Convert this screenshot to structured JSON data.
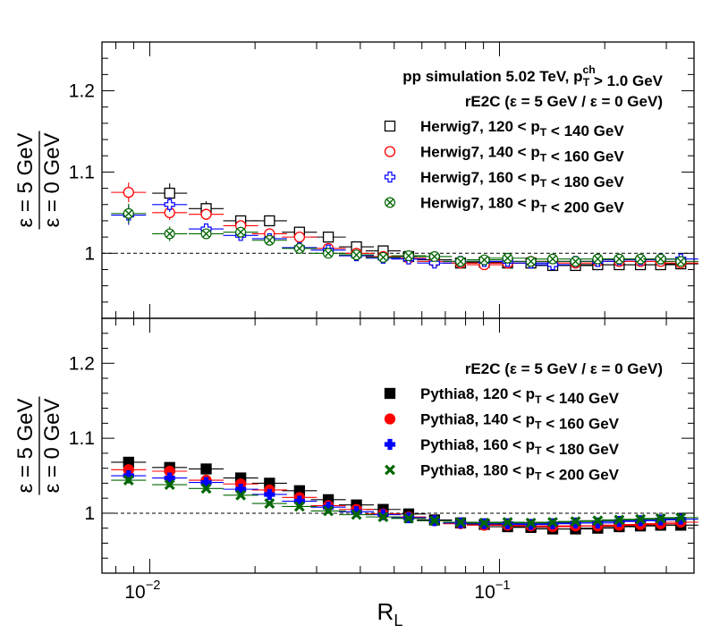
{
  "chart_data": [
    {
      "type": "scatter",
      "panel": "top",
      "ylabel": {
        "numerator": "ε = 5 GeV",
        "denominator": "ε = 0 GeV"
      },
      "ylim": [
        0.92,
        1.26
      ],
      "xlim": [
        0.0073,
        0.36
      ],
      "xscale": "log",
      "reference_line": 1.0,
      "yticks": [
        "1",
        "1.1",
        "1.2"
      ],
      "header": [
        "pp simulation 5.02 TeV, p_T^ch > 1.0 GeV",
        "rE2C (ε = 5 GeV / ε = 0 GeV)"
      ],
      "legend_position": "top-right",
      "series": [
        {
          "name": "Herwig7, 120 < p_T < 140 GeV",
          "color": "#000000",
          "marker": "open-square",
          "x": [
            0.0114,
            0.0145,
            0.0182,
            0.022,
            0.0268,
            0.0324,
            0.039,
            0.0465,
            0.055,
            0.0652,
            0.0774,
            0.0905,
            0.1055,
            0.123,
            0.142,
            0.165,
            0.191,
            0.22,
            0.253,
            0.289,
            0.33
          ],
          "y": [
            1.074,
            1.055,
            1.04,
            1.04,
            1.026,
            1.02,
            1.008,
            1.003,
            0.996,
            0.992,
            0.988,
            0.989,
            0.988,
            0.988,
            0.985,
            0.985,
            0.986,
            0.986,
            0.986,
            0.986,
            0.987
          ]
        },
        {
          "name": "Herwig7, 140 < p_T < 160 GeV",
          "color": "#ff0000",
          "marker": "open-circle",
          "x": [
            0.0087,
            0.0114,
            0.0145,
            0.0182,
            0.022,
            0.0268,
            0.0324,
            0.039,
            0.0465,
            0.055,
            0.0652,
            0.0774,
            0.0905,
            0.1055,
            0.123,
            0.142,
            0.165,
            0.191,
            0.22,
            0.253,
            0.289,
            0.33
          ],
          "y": [
            1.075,
            1.05,
            1.048,
            1.034,
            1.024,
            1.02,
            1.006,
            1.0,
            0.996,
            0.994,
            0.99,
            0.988,
            0.986,
            0.988,
            0.99,
            0.99,
            0.988,
            0.99,
            0.99,
            0.99,
            0.99,
            0.988
          ]
        },
        {
          "name": "Herwig7, 160 < p_T < 180 GeV",
          "color": "#0000ff",
          "marker": "open-cross",
          "x": [
            0.0087,
            0.0114,
            0.0145,
            0.0182,
            0.022,
            0.0268,
            0.0324,
            0.039,
            0.0465,
            0.055,
            0.0652,
            0.0774,
            0.0905,
            0.1055,
            0.123,
            0.142,
            0.165,
            0.191,
            0.22,
            0.253,
            0.289,
            0.33
          ],
          "y": [
            1.047,
            1.06,
            1.03,
            1.022,
            1.018,
            1.007,
            1.004,
            0.997,
            0.994,
            0.993,
            0.988,
            0.99,
            0.99,
            0.99,
            0.988,
            0.986,
            0.99,
            0.99,
            0.992,
            0.992,
            0.993,
            0.993
          ]
        },
        {
          "name": "Herwig7, 180 < p_T < 200 GeV",
          "color": "#006600",
          "marker": "open-x",
          "x": [
            0.0087,
            0.0114,
            0.0145,
            0.0182,
            0.022,
            0.0268,
            0.0324,
            0.039,
            0.0465,
            0.055,
            0.0652,
            0.0774,
            0.0905,
            0.1055,
            0.123,
            0.142,
            0.165,
            0.191,
            0.22,
            0.253,
            0.289,
            0.33
          ],
          "y": [
            1.049,
            1.024,
            1.024,
            1.026,
            1.016,
            1.006,
            1.0,
            0.998,
            0.995,
            0.997,
            0.996,
            0.99,
            0.992,
            0.994,
            0.99,
            0.993,
            0.99,
            0.993,
            0.993,
            0.993,
            0.993,
            0.99
          ]
        }
      ]
    },
    {
      "type": "scatter",
      "panel": "bottom",
      "ylabel": {
        "numerator": "ε = 5 GeV",
        "denominator": "ε = 0 GeV"
      },
      "ylim": [
        0.92,
        1.26
      ],
      "xlim": [
        0.0073,
        0.36
      ],
      "xscale": "log",
      "reference_line": 1.0,
      "yticks": [
        "1",
        "1.1",
        "1.2"
      ],
      "xlabel": "R_L",
      "xticks": [
        {
          "base": "10",
          "exp": "−2",
          "value": 0.01
        },
        {
          "base": "10",
          "exp": "−1",
          "value": 0.1
        }
      ],
      "header": [
        "rE2C (ε = 5 GeV / ε = 0 GeV)"
      ],
      "legend_position": "top-right",
      "series": [
        {
          "name": "Pythia8, 120 < p_T < 140 GeV",
          "color": "#000000",
          "marker": "filled-square",
          "x": [
            0.0087,
            0.0114,
            0.0145,
            0.0182,
            0.022,
            0.0268,
            0.0324,
            0.039,
            0.0465,
            0.055,
            0.0652,
            0.0774,
            0.0905,
            0.1055,
            0.123,
            0.142,
            0.165,
            0.191,
            0.22,
            0.253,
            0.289,
            0.33
          ],
          "y": [
            1.068,
            1.061,
            1.059,
            1.047,
            1.04,
            1.03,
            1.018,
            1.011,
            1.005,
            0.999,
            0.991,
            0.987,
            0.985,
            0.982,
            0.981,
            0.979,
            0.979,
            0.98,
            0.982,
            0.983,
            0.984,
            0.984
          ]
        },
        {
          "name": "Pythia8, 140 < p_T < 160 GeV",
          "color": "#ff0000",
          "marker": "filled-circle",
          "x": [
            0.0087,
            0.0114,
            0.0145,
            0.0182,
            0.022,
            0.0268,
            0.0324,
            0.039,
            0.0465,
            0.055,
            0.0652,
            0.0774,
            0.0905,
            0.1055,
            0.123,
            0.142,
            0.165,
            0.191,
            0.22,
            0.253,
            0.289,
            0.33
          ],
          "y": [
            1.058,
            1.056,
            1.044,
            1.039,
            1.031,
            1.021,
            1.01,
            1.005,
            0.999,
            0.995,
            0.99,
            0.986,
            0.984,
            0.984,
            0.983,
            0.982,
            0.983,
            0.983,
            0.984,
            0.985,
            0.986,
            0.988
          ]
        },
        {
          "name": "Pythia8, 160 < p_T < 180 GeV",
          "color": "#0000ff",
          "marker": "filled-cross",
          "x": [
            0.0087,
            0.0114,
            0.0145,
            0.0182,
            0.022,
            0.0268,
            0.0324,
            0.039,
            0.0465,
            0.055,
            0.0652,
            0.0774,
            0.0905,
            0.1055,
            0.123,
            0.142,
            0.165,
            0.191,
            0.22,
            0.253,
            0.289,
            0.33
          ],
          "y": [
            1.05,
            1.047,
            1.041,
            1.032,
            1.025,
            1.016,
            1.008,
            1.002,
            0.998,
            0.994,
            0.99,
            0.987,
            0.986,
            0.986,
            0.985,
            0.986,
            0.987,
            0.987,
            0.989,
            0.99,
            0.991,
            0.992
          ]
        },
        {
          "name": "Pythia8, 180 < p_T < 200 GeV",
          "color": "#006600",
          "marker": "filled-x",
          "x": [
            0.0087,
            0.0114,
            0.0145,
            0.0182,
            0.022,
            0.0268,
            0.0324,
            0.039,
            0.0465,
            0.055,
            0.0652,
            0.0774,
            0.0905,
            0.1055,
            0.123,
            0.142,
            0.165,
            0.191,
            0.22,
            0.253,
            0.289,
            0.33
          ],
          "y": [
            1.044,
            1.038,
            1.033,
            1.024,
            1.013,
            1.009,
            1.003,
            0.998,
            0.995,
            0.993,
            0.99,
            0.988,
            0.987,
            0.988,
            0.987,
            0.988,
            0.989,
            0.99,
            0.991,
            0.992,
            0.993,
            0.994
          ]
        }
      ]
    }
  ]
}
